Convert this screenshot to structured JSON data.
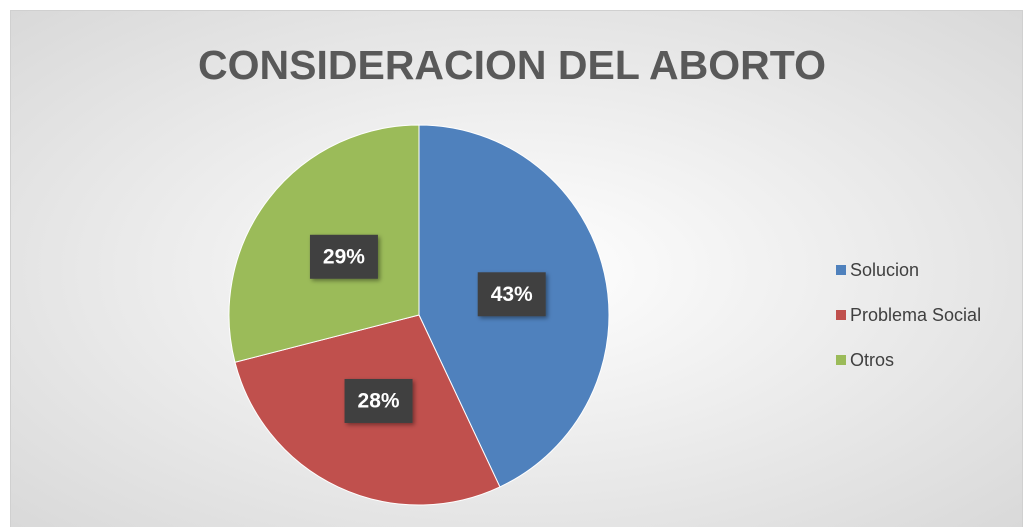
{
  "chart_data": {
    "type": "pie",
    "title": "CONSIDERACION DEL ABORTO",
    "categories": [
      "Solucion",
      "Problema Social",
      "Otros"
    ],
    "values": [
      43,
      28,
      29
    ],
    "value_labels": [
      "43%",
      "28%",
      "29%"
    ],
    "colors": [
      "#4f81bd",
      "#c0504d",
      "#9bbb59"
    ],
    "legend": "right"
  }
}
